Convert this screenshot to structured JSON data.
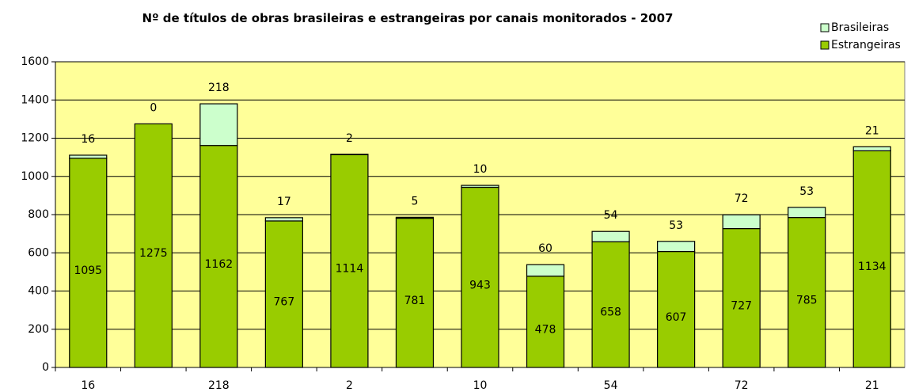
{
  "chart_data": {
    "type": "stacked_bar",
    "title": "Nº de títulos de obras brasileiras e estrangeiras por canais monitorados - 2007",
    "categories": [
      "16",
      null,
      "218",
      null,
      "2",
      null,
      "10",
      null,
      "54",
      null,
      "72",
      null,
      "21"
    ],
    "series": [
      {
        "name": "Estrangeiras",
        "color": "#99cc00",
        "values": [
          1095,
          1275,
          1162,
          767,
          1114,
          781,
          943,
          478,
          658,
          607,
          727,
          785,
          1134
        ]
      },
      {
        "name": "Brasileiras",
        "color": "#ccffcc",
        "values": [
          16,
          0,
          218,
          17,
          2,
          5,
          10,
          60,
          54,
          53,
          72,
          53,
          21
        ]
      }
    ],
    "ylim": [
      0,
      1600
    ],
    "yticks": [
      0,
      200,
      400,
      600,
      800,
      1000,
      1200,
      1400,
      1600
    ],
    "grid": true,
    "plot_background": "#ffff99",
    "legend": "top-right"
  }
}
